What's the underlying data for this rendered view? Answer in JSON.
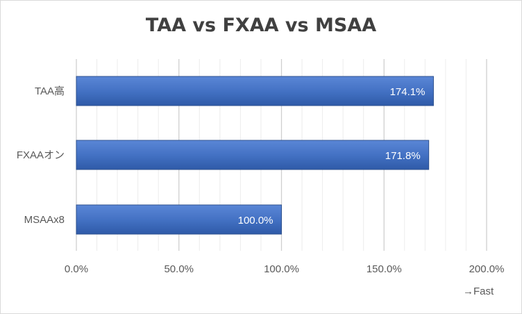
{
  "chart_data": {
    "type": "bar",
    "orientation": "horizontal",
    "title": "TAA vs FXAA vs MSAA",
    "categories": [
      "TAA高",
      "FXAAオン",
      "MSAAx8"
    ],
    "values": [
      174.1,
      171.8,
      100.0
    ],
    "value_labels": [
      "174.1%",
      "171.8%",
      "100.0%"
    ],
    "x_ticks": [
      "0.0%",
      "50.0%",
      "100.0%",
      "150.0%",
      "200.0%"
    ],
    "xlim": [
      0,
      200
    ],
    "x_note": "→Fast",
    "grid": true,
    "legend": "none",
    "bar_color": "#4472c4"
  }
}
